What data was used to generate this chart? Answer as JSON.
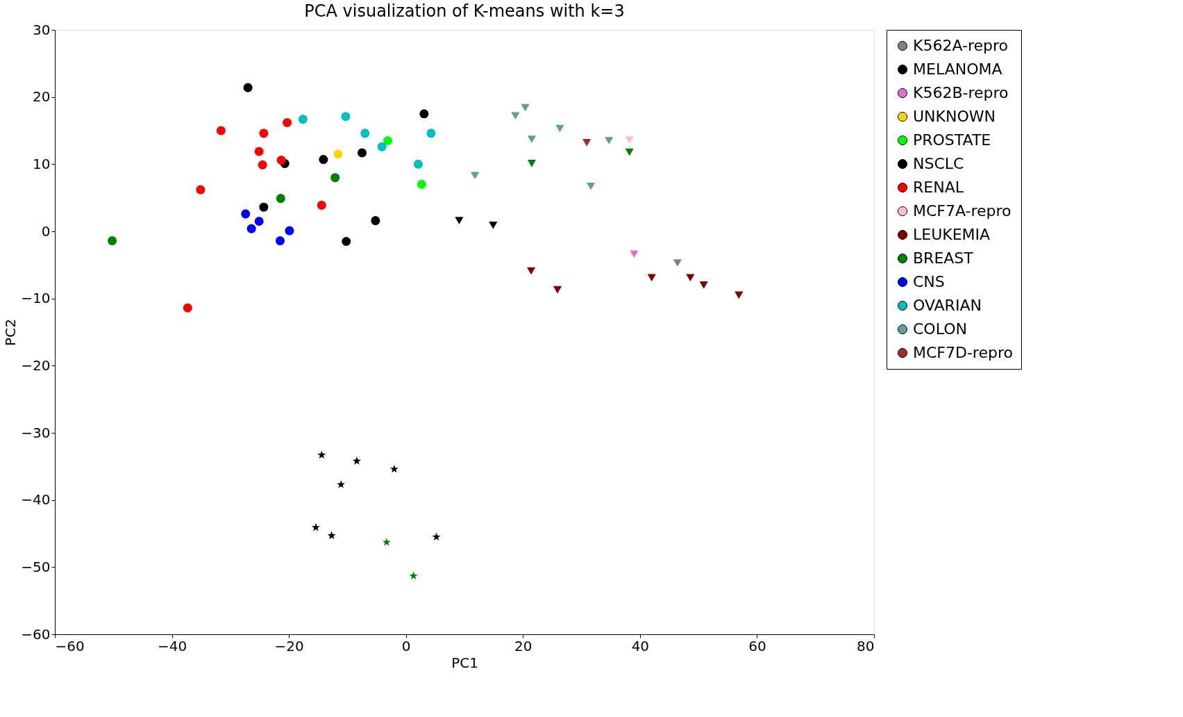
{
  "chart_data": {
    "type": "scatter",
    "title": "PCA visualization of K-means with k=3",
    "xlabel": "PC1",
    "ylabel": "PC2",
    "xlim": [
      -60,
      80
    ],
    "xticks": [
      -60,
      -40,
      -20,
      0,
      20,
      40,
      60,
      80
    ],
    "ylim": [
      -60,
      30
    ],
    "yticks": [
      -60,
      -50,
      -40,
      -30,
      -20,
      -10,
      0,
      10,
      20,
      30
    ],
    "grid": false,
    "legend": "right",
    "series": [
      {
        "name": "K562A-repro",
        "color": "#808080",
        "marker": "triangle",
        "x": [
          46.4
        ],
        "values": [
          -4.7
        ]
      },
      {
        "name": "MELANOMA",
        "color": "#000000",
        "marker": "circle",
        "x": [
          -27.0,
          3.1,
          -20.7,
          -14.1
        ],
        "values": [
          21.4,
          17.5,
          10.1,
          10.7
        ]
      },
      {
        "color": "#000000",
        "marker": "star",
        "x": [
          -14.4,
          -8.4,
          -2.0,
          -11.1
        ],
        "values": [
          -33.3,
          -34.2,
          -35.4,
          -37.7
        ]
      },
      {
        "name": "K562B-repro",
        "color": "#da70d6",
        "marker": "triangle",
        "x": [
          39.0
        ],
        "values": [
          -3.4
        ]
      },
      {
        "name": "UNKNOWN",
        "color": "#ffd700",
        "marker": "circle",
        "x": [
          -11.6
        ],
        "values": [
          11.5
        ]
      },
      {
        "name": "PROSTATE",
        "color": "#00ff00",
        "marker": "circle",
        "x": [
          -3.1,
          2.7
        ],
        "values": [
          13.5,
          7.0
        ]
      },
      {
        "name": "NSCLC",
        "color": "#000000",
        "marker": "circle",
        "x": [
          -7.5,
          -24.3,
          -5.2,
          -10.2
        ],
        "values": [
          11.7,
          3.6,
          1.6,
          -1.5
        ]
      },
      {
        "color": "#000000",
        "marker": "star",
        "x": [
          -15.4,
          -12.7,
          5.2
        ],
        "values": [
          -44.1,
          -45.3,
          -45.5
        ]
      },
      {
        "color": "#000000",
        "marker": "triangle",
        "x": [
          9.1,
          14.9
        ],
        "values": [
          1.6,
          0.9
        ]
      },
      {
        "name": "RENAL",
        "color": "#ff0000",
        "marker": "circle",
        "x": [
          -31.6,
          -24.3,
          -20.3,
          -25.1,
          -24.5,
          -21.3,
          -35.1,
          -14.4,
          -37.3
        ],
        "values": [
          15.0,
          14.6,
          16.2,
          11.9,
          9.9,
          10.6,
          6.2,
          3.9,
          -11.4
        ]
      },
      {
        "name": "MCF7A-repro",
        "color": "#ffc0cb",
        "marker": "triangle",
        "x": [
          38.2
        ],
        "values": [
          13.6
        ]
      },
      {
        "name": "LEUKEMIA",
        "color": "#800000",
        "marker": "triangle",
        "x": [
          21.4,
          25.9,
          42.0,
          48.6,
          50.9,
          56.9
        ],
        "values": [
          -5.9,
          -8.7,
          -6.9,
          -6.9,
          -8.0,
          -9.5
        ]
      },
      {
        "name": "BREAST",
        "color": "#008000",
        "marker": "circle",
        "x": [
          -50.2,
          -21.4,
          -12.1
        ],
        "values": [
          -1.4,
          4.9,
          8.0
        ]
      },
      {
        "color": "#008000",
        "marker": "triangle",
        "x": [
          21.5,
          38.2
        ],
        "values": [
          10.1,
          11.8
        ]
      },
      {
        "color": "#008000",
        "marker": "star",
        "x": [
          -3.3,
          1.3
        ],
        "values": [
          -46.3,
          -51.3
        ]
      },
      {
        "name": "CNS",
        "color": "#0000ff",
        "marker": "circle",
        "x": [
          -27.4,
          -26.4,
          -25.1,
          -21.5,
          -19.9
        ],
        "values": [
          2.6,
          0.4,
          1.5,
          -1.4,
          0.1
        ]
      },
      {
        "name": "OVARIAN",
        "color": "#00bfbf",
        "marker": "circle",
        "x": [
          -17.6,
          -10.3,
          -7.0,
          -4.1,
          4.3,
          2.1
        ],
        "values": [
          16.7,
          17.1,
          14.6,
          12.6,
          14.6,
          10.0
        ]
      },
      {
        "name": "COLON",
        "color": "#5f9ea0",
        "marker": "triangle",
        "x": [
          18.7,
          20.4,
          21.5,
          26.3,
          34.7,
          11.8,
          31.6
        ],
        "values": [
          17.2,
          18.4,
          13.7,
          15.3,
          13.5,
          8.3,
          6.7
        ]
      },
      {
        "name": "MCF7D-repro",
        "color": "#a52a2a",
        "marker": "triangle",
        "x": [
          30.9
        ],
        "values": [
          13.2
        ]
      }
    ]
  }
}
